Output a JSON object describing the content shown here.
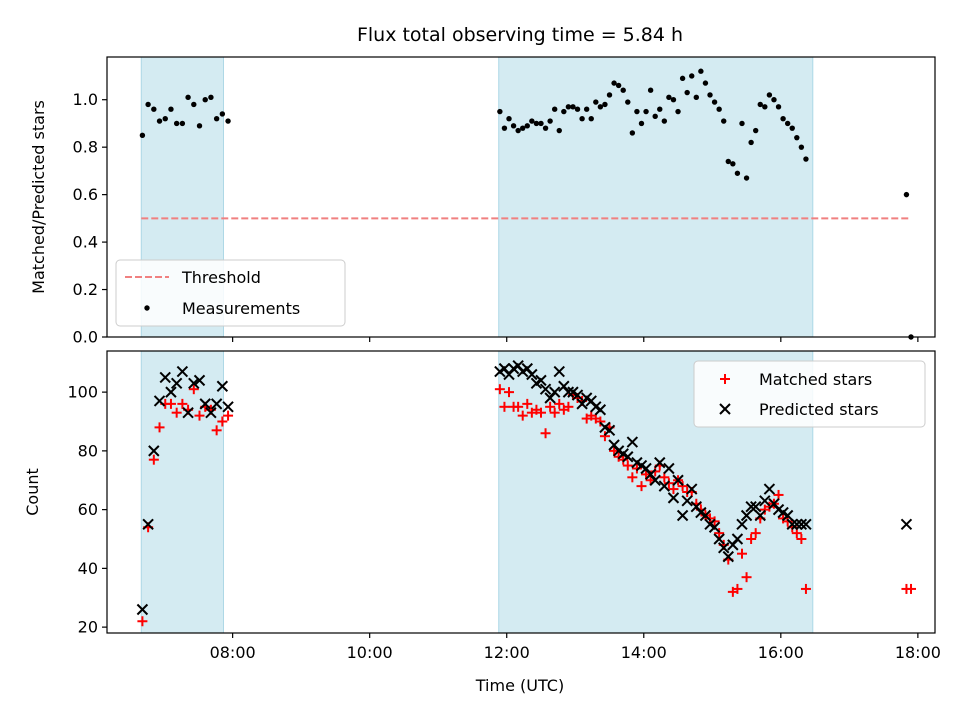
{
  "title": "Flux total observing time = 5.84 h",
  "chart_data": [
    {
      "type": "scatter",
      "title": "Flux total observing time = 5.84 h",
      "xlabel": "",
      "ylabel": "Matched/Predicted stars",
      "xlim": [
        "06:10",
        "18:15"
      ],
      "ylim": [
        0,
        1.18
      ],
      "yticks": [
        "0.0",
        "0.2",
        "0.4",
        "0.6",
        "0.8",
        "1.0"
      ],
      "shaded_intervals": [
        [
          "06:40",
          "07:52"
        ],
        [
          "11:53",
          "16:28"
        ]
      ],
      "threshold": {
        "name": "Threshold",
        "value": 0.5,
        "x_range": [
          "06:40",
          "17:52"
        ],
        "color": "#f08080",
        "style": "dashed"
      },
      "series": [
        {
          "name": "Measurements",
          "marker": "dot",
          "color": "#000000",
          "x": [
            "06:41",
            "06:46",
            "06:51",
            "06:56",
            "07:01",
            "07:06",
            "07:11",
            "07:16",
            "07:21",
            "07:26",
            "07:31",
            "07:36",
            "07:41",
            "07:46",
            "07:51",
            "07:56",
            "11:54",
            "11:58",
            "12:02",
            "12:06",
            "12:10",
            "12:14",
            "12:18",
            "12:22",
            "12:26",
            "12:30",
            "12:34",
            "12:38",
            "12:42",
            "12:46",
            "12:50",
            "12:54",
            "12:58",
            "13:02",
            "13:06",
            "13:10",
            "13:14",
            "13:18",
            "13:22",
            "13:26",
            "13:30",
            "13:34",
            "13:38",
            "13:42",
            "13:46",
            "13:50",
            "13:54",
            "13:58",
            "14:02",
            "14:06",
            "14:10",
            "14:14",
            "14:18",
            "14:22",
            "14:26",
            "14:30",
            "14:34",
            "14:38",
            "14:42",
            "14:46",
            "14:50",
            "14:54",
            "14:58",
            "15:02",
            "15:06",
            "15:10",
            "15:14",
            "15:18",
            "15:22",
            "15:26",
            "15:30",
            "15:34",
            "15:38",
            "15:42",
            "15:46",
            "15:50",
            "15:54",
            "15:58",
            "16:02",
            "16:06",
            "16:10",
            "16:14",
            "16:18",
            "16:22",
            "17:50",
            "17:54"
          ],
          "y": [
            0.85,
            0.98,
            0.96,
            0.91,
            0.92,
            0.96,
            0.9,
            0.9,
            1.01,
            0.98,
            0.89,
            1.0,
            1.01,
            0.92,
            0.94,
            0.91,
            0.95,
            0.88,
            0.92,
            0.89,
            0.87,
            0.88,
            0.89,
            0.91,
            0.9,
            0.9,
            0.88,
            0.91,
            0.96,
            0.87,
            0.95,
            0.97,
            0.97,
            0.96,
            0.92,
            0.96,
            0.92,
            0.99,
            0.97,
            0.98,
            1.02,
            1.07,
            1.06,
            1.04,
            0.99,
            0.86,
            0.95,
            0.9,
            0.95,
            1.04,
            0.93,
            0.96,
            0.91,
            1.01,
            1.0,
            0.95,
            1.09,
            1.03,
            1.1,
            1.01,
            1.12,
            1.07,
            1.02,
            0.99,
            0.96,
            0.91,
            0.74,
            0.73,
            0.69,
            0.9,
            0.67,
            0.82,
            0.87,
            0.98,
            0.97,
            1.02,
            1.0,
            0.97,
            0.92,
            0.9,
            0.88,
            0.84,
            0.8,
            0.75,
            0.6,
            0.0
          ]
        }
      ],
      "legend": {
        "placement": "lower-left",
        "entries": [
          "Threshold",
          "Measurements"
        ]
      }
    },
    {
      "type": "scatter",
      "xlabel": "Time (UTC)",
      "ylabel": "Count",
      "xlim": [
        "06:10",
        "18:15"
      ],
      "ylim": [
        18,
        114
      ],
      "xticks": [
        "08:00",
        "10:00",
        "12:00",
        "14:00",
        "16:00",
        "18:00"
      ],
      "yticks": [
        "20",
        "40",
        "60",
        "80",
        "100"
      ],
      "shaded_intervals": [
        [
          "06:40",
          "07:52"
        ],
        [
          "11:53",
          "16:28"
        ]
      ],
      "series": [
        {
          "name": "Matched stars",
          "marker": "plus",
          "color": "#ff0000",
          "x": [
            "06:41",
            "06:46",
            "06:51",
            "06:56",
            "07:01",
            "07:06",
            "07:11",
            "07:16",
            "07:21",
            "07:26",
            "07:31",
            "07:36",
            "07:41",
            "07:46",
            "07:51",
            "07:56",
            "11:54",
            "11:58",
            "12:02",
            "12:06",
            "12:10",
            "12:14",
            "12:18",
            "12:22",
            "12:26",
            "12:30",
            "12:34",
            "12:38",
            "12:42",
            "12:46",
            "12:50",
            "12:54",
            "12:58",
            "13:02",
            "13:06",
            "13:10",
            "13:14",
            "13:18",
            "13:22",
            "13:26",
            "13:30",
            "13:34",
            "13:38",
            "13:42",
            "13:46",
            "13:50",
            "13:54",
            "13:58",
            "14:02",
            "14:06",
            "14:10",
            "14:14",
            "14:18",
            "14:22",
            "14:26",
            "14:30",
            "14:34",
            "14:38",
            "14:42",
            "14:46",
            "14:50",
            "14:54",
            "14:58",
            "15:02",
            "15:06",
            "15:10",
            "15:14",
            "15:18",
            "15:22",
            "15:26",
            "15:30",
            "15:34",
            "15:38",
            "15:42",
            "15:46",
            "15:50",
            "15:54",
            "15:58",
            "16:02",
            "16:06",
            "16:10",
            "16:14",
            "16:18",
            "16:22",
            "17:50",
            "17:54"
          ],
          "y": [
            22,
            54,
            77,
            88,
            96,
            96,
            93,
            96,
            94,
            101,
            92,
            95,
            94,
            87,
            90,
            92,
            101,
            95,
            100,
            95,
            95,
            92,
            96,
            93,
            94,
            93,
            86,
            95,
            93,
            96,
            94,
            95,
            99,
            98,
            97,
            91,
            92,
            91,
            90,
            85,
            88,
            80,
            78,
            77,
            75,
            71,
            74,
            68,
            72,
            70,
            73,
            75,
            71,
            69,
            67,
            70,
            68,
            66,
            66,
            62,
            60,
            58,
            57,
            56,
            52,
            48,
            43,
            32,
            33,
            45,
            37,
            50,
            52,
            57,
            60,
            61,
            62,
            65,
            57,
            56,
            54,
            52,
            50,
            33,
            33,
            33
          ]
        },
        {
          "name": "Predicted stars",
          "marker": "x",
          "color": "#000000",
          "x": [
            "06:41",
            "06:46",
            "06:51",
            "06:56",
            "07:01",
            "07:06",
            "07:11",
            "07:16",
            "07:21",
            "07:26",
            "07:31",
            "07:36",
            "07:41",
            "07:46",
            "07:51",
            "07:56",
            "11:54",
            "11:58",
            "12:02",
            "12:06",
            "12:10",
            "12:14",
            "12:18",
            "12:22",
            "12:26",
            "12:30",
            "12:34",
            "12:38",
            "12:42",
            "12:46",
            "12:50",
            "12:54",
            "12:58",
            "13:02",
            "13:06",
            "13:10",
            "13:14",
            "13:18",
            "13:22",
            "13:26",
            "13:30",
            "13:34",
            "13:38",
            "13:42",
            "13:46",
            "13:50",
            "13:54",
            "13:58",
            "14:02",
            "14:06",
            "14:10",
            "14:14",
            "14:18",
            "14:22",
            "14:26",
            "14:30",
            "14:34",
            "14:38",
            "14:42",
            "14:46",
            "14:50",
            "14:54",
            "14:58",
            "15:02",
            "15:06",
            "15:10",
            "15:14",
            "15:18",
            "15:22",
            "15:26",
            "15:30",
            "15:34",
            "15:38",
            "15:42",
            "15:46",
            "15:50",
            "15:54",
            "15:58",
            "16:02",
            "16:06",
            "16:10",
            "16:14",
            "16:18",
            "16:22",
            "17:50"
          ],
          "y": [
            26,
            55,
            80,
            97,
            105,
            100,
            103,
            107,
            93,
            103,
            104,
            96,
            93,
            96,
            102,
            95,
            107,
            108,
            106,
            108,
            109,
            107,
            108,
            106,
            103,
            104,
            101,
            98,
            100,
            107,
            102,
            100,
            100,
            99,
            96,
            98,
            97,
            95,
            94,
            88,
            87,
            82,
            80,
            79,
            78,
            83,
            76,
            75,
            74,
            72,
            70,
            76,
            68,
            74,
            64,
            70,
            58,
            63,
            67,
            61,
            59,
            58,
            55,
            54,
            50,
            47,
            44,
            48,
            50,
            55,
            58,
            61,
            61,
            58,
            63,
            67,
            62,
            60,
            59,
            58,
            55,
            55,
            55,
            55,
            55
          ]
        }
      ],
      "legend": {
        "placement": "top-right",
        "entries": [
          "Matched stars",
          "Predicted stars"
        ]
      }
    }
  ]
}
